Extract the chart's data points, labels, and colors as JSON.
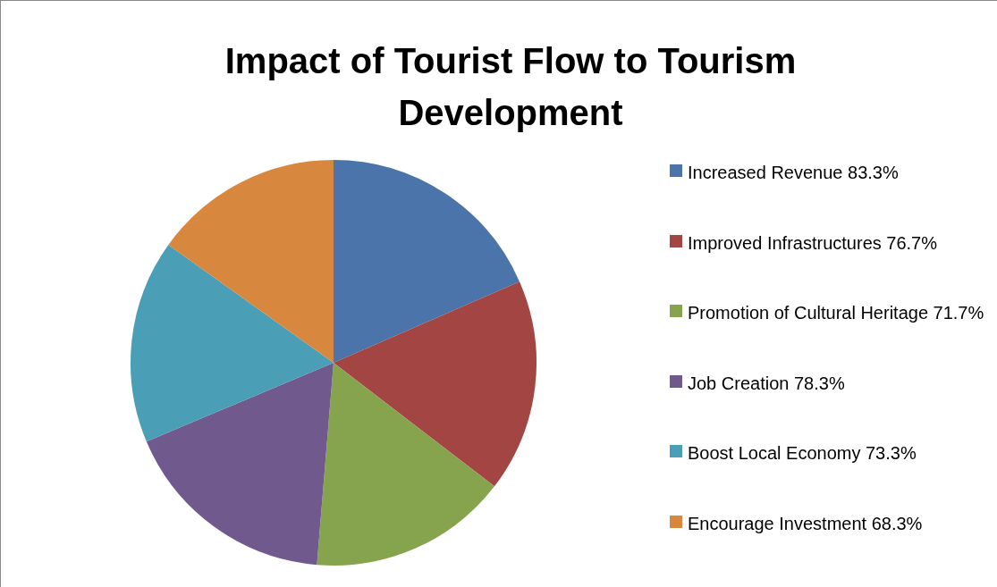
{
  "chart_data": {
    "type": "pie",
    "title": "Impact of Tourist Flow to Tourism Development",
    "categories": [
      "Increased Revenue 83.3%",
      "Improved Infrastructures 76.7%",
      "Promotion of Cultural Heritage 71.7%",
      "Job Creation 78.3%",
      "Boost Local Economy 73.3%",
      "Encourage Investment 68.3%"
    ],
    "values": [
      83.3,
      76.7,
      71.7,
      78.3,
      73.3,
      68.3
    ],
    "colors": [
      "#4a74aa",
      "#a34543",
      "#86a34d",
      "#70598c",
      "#4a9eb6",
      "#d8873f"
    ],
    "legend": "right"
  }
}
